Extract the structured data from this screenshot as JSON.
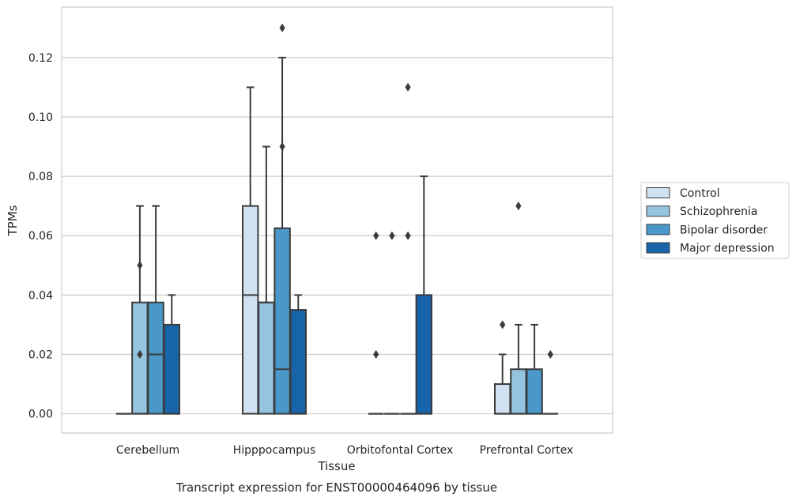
{
  "caption": "Transcript expression for ENST00000464096 by tissue",
  "chart_data": {
    "type": "box",
    "xlabel": "Tissue",
    "ylabel": "TPMs",
    "ylim": [
      -0.0065,
      0.137
    ],
    "yticks": [
      "0.00",
      "0.02",
      "0.04",
      "0.06",
      "0.08",
      "0.10",
      "0.12"
    ],
    "categories": [
      "Cerebellum",
      "Hipppocampus",
      "Orbitofontal Cortex",
      "Prefrontal Cortex"
    ],
    "grid": "horizontal",
    "legend_position": "right",
    "series": [
      {
        "name": "Control",
        "color": "#d0e1f2",
        "boxes": [
          {
            "q1": 0,
            "median": 0,
            "q3": 0,
            "whisker_low": 0,
            "whisker_high": 0,
            "outliers": []
          },
          {
            "q1": 0,
            "median": 0.04,
            "q3": 0.07,
            "whisker_low": 0,
            "whisker_high": 0.11,
            "outliers": []
          },
          {
            "q1": 0,
            "median": 0,
            "q3": 0,
            "whisker_low": 0,
            "whisker_high": 0,
            "outliers": [
              0.06,
              0.02
            ]
          },
          {
            "q1": 0,
            "median": 0,
            "q3": 0.01,
            "whisker_low": 0,
            "whisker_high": 0.02,
            "outliers": [
              0.03
            ]
          }
        ]
      },
      {
        "name": "Schizophrenia",
        "color": "#94c4df",
        "boxes": [
          {
            "q1": 0,
            "median": 0,
            "q3": 0.0375,
            "whisker_low": 0,
            "whisker_high": 0.07,
            "outliers": [
              0.05,
              0.02
            ]
          },
          {
            "q1": 0,
            "median": 0.0375,
            "q3": 0.0375,
            "whisker_low": 0,
            "whisker_high": 0.09,
            "outliers": []
          },
          {
            "q1": 0,
            "median": 0,
            "q3": 0,
            "whisker_low": 0,
            "whisker_high": 0,
            "outliers": [
              0.06
            ]
          },
          {
            "q1": 0,
            "median": 0,
            "q3": 0.015,
            "whisker_low": 0,
            "whisker_high": 0.03,
            "outliers": [
              0.07
            ]
          }
        ]
      },
      {
        "name": "Bipolar disorder",
        "color": "#4a98c9",
        "boxes": [
          {
            "q1": 0,
            "median": 0.02,
            "q3": 0.0375,
            "whisker_low": 0,
            "whisker_high": 0.07,
            "outliers": []
          },
          {
            "q1": 0,
            "median": 0.015,
            "q3": 0.0625,
            "whisker_low": 0,
            "whisker_high": 0.12,
            "outliers": [
              0.13,
              0.09
            ]
          },
          {
            "q1": 0,
            "median": 0,
            "q3": 0,
            "whisker_low": 0,
            "whisker_high": 0,
            "outliers": [
              0.06,
              0.11
            ]
          },
          {
            "q1": 0,
            "median": 0,
            "q3": 0.015,
            "whisker_low": 0,
            "whisker_high": 0.03,
            "outliers": []
          }
        ]
      },
      {
        "name": "Major depression",
        "color": "#1764ab",
        "boxes": [
          {
            "q1": 0,
            "median": 0,
            "q3": 0.03,
            "whisker_low": 0,
            "whisker_high": 0.04,
            "outliers": []
          },
          {
            "q1": 0,
            "median": 0,
            "q3": 0.035,
            "whisker_low": 0,
            "whisker_high": 0.04,
            "outliers": []
          },
          {
            "q1": 0,
            "median": 0,
            "q3": 0.04,
            "whisker_low": 0,
            "whisker_high": 0.08,
            "outliers": []
          },
          {
            "q1": 0,
            "median": 0,
            "q3": 0,
            "whisker_low": 0,
            "whisker_high": 0,
            "outliers": [
              0.02
            ]
          }
        ]
      }
    ]
  }
}
